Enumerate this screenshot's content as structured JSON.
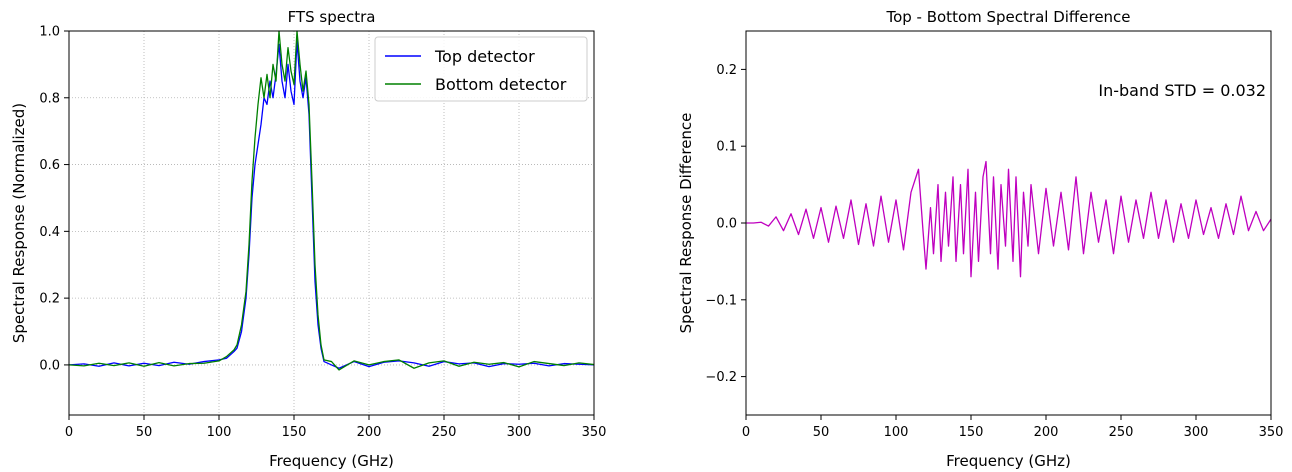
{
  "chart_data": [
    {
      "type": "line",
      "title": "FTS spectra",
      "xlabel": "Frequency (GHz)",
      "ylabel": "Spectral Response (Normalized)",
      "xlim": [
        0,
        350
      ],
      "ylim": [
        -0.15,
        1.0
      ],
      "xticks": [
        0,
        50,
        100,
        150,
        200,
        250,
        300,
        350
      ],
      "xtick_labels": [
        "0",
        "50",
        "100",
        "150",
        "200",
        "250",
        "300",
        "350"
      ],
      "yticks": [
        0.0,
        0.2,
        0.4,
        0.6,
        0.8,
        1.0
      ],
      "ytick_labels": [
        "0.0",
        "0.2",
        "0.4",
        "0.6",
        "0.8",
        "1.0"
      ],
      "grid": true,
      "legend_position": "top-right",
      "series": [
        {
          "name": "Top detector",
          "color": "#0000ff",
          "x": [
            0,
            10,
            20,
            30,
            40,
            50,
            60,
            70,
            80,
            90,
            100,
            105,
            110,
            112,
            115,
            118,
            120,
            122,
            124,
            126,
            128,
            130,
            132,
            134,
            136,
            138,
            140,
            142,
            144,
            146,
            148,
            150,
            152,
            154,
            156,
            158,
            160,
            162,
            164,
            166,
            168,
            170,
            175,
            180,
            190,
            200,
            210,
            220,
            230,
            240,
            250,
            260,
            270,
            280,
            290,
            300,
            310,
            320,
            330,
            340,
            350
          ],
          "values": [
            0.0,
            0.003,
            -0.004,
            0.006,
            -0.003,
            0.005,
            -0.002,
            0.008,
            0.002,
            0.01,
            0.015,
            0.02,
            0.04,
            0.05,
            0.1,
            0.2,
            0.33,
            0.5,
            0.6,
            0.66,
            0.72,
            0.8,
            0.78,
            0.85,
            0.8,
            0.87,
            0.96,
            0.85,
            0.8,
            0.9,
            0.82,
            0.78,
            0.97,
            0.85,
            0.8,
            0.86,
            0.75,
            0.5,
            0.25,
            0.12,
            0.05,
            0.01,
            0.0,
            -0.01,
            0.01,
            -0.005,
            0.008,
            0.012,
            0.006,
            -0.004,
            0.01,
            0.003,
            0.006,
            -0.005,
            0.004,
            0.002,
            0.005,
            -0.003,
            0.004,
            0.002,
            0.0
          ]
        },
        {
          "name": "Bottom detector",
          "color": "#008000",
          "x": [
            0,
            10,
            20,
            30,
            40,
            50,
            60,
            70,
            80,
            90,
            100,
            105,
            110,
            112,
            115,
            118,
            120,
            122,
            124,
            126,
            128,
            130,
            132,
            134,
            136,
            138,
            140,
            142,
            144,
            146,
            148,
            150,
            152,
            154,
            156,
            158,
            160,
            162,
            164,
            166,
            168,
            170,
            175,
            180,
            190,
            200,
            210,
            220,
            230,
            240,
            250,
            260,
            270,
            280,
            290,
            300,
            310,
            320,
            330,
            340,
            350
          ],
          "values": [
            0.0,
            -0.003,
            0.005,
            -0.002,
            0.006,
            -0.004,
            0.007,
            -0.003,
            0.004,
            0.005,
            0.012,
            0.025,
            0.045,
            0.06,
            0.12,
            0.22,
            0.36,
            0.55,
            0.68,
            0.78,
            0.86,
            0.8,
            0.87,
            0.8,
            0.9,
            0.85,
            1.0,
            0.9,
            0.85,
            0.95,
            0.88,
            0.84,
            1.0,
            0.9,
            0.82,
            0.88,
            0.78,
            0.55,
            0.3,
            0.15,
            0.06,
            0.015,
            0.01,
            -0.015,
            0.012,
            0.0,
            0.01,
            0.015,
            -0.01,
            0.006,
            0.012,
            -0.004,
            0.008,
            0.002,
            0.007,
            -0.006,
            0.01,
            0.004,
            -0.002,
            0.006,
            0.001
          ]
        }
      ]
    },
    {
      "type": "line",
      "title": "Top - Bottom Spectral Difference",
      "xlabel": "Frequency (GHz)",
      "ylabel": "Spectral Response Difference",
      "xlim": [
        0,
        350
      ],
      "ylim": [
        -0.25,
        0.25
      ],
      "xticks": [
        0,
        50,
        100,
        150,
        200,
        250,
        300,
        350
      ],
      "xtick_labels": [
        "0",
        "50",
        "100",
        "150",
        "200",
        "250",
        "300",
        "350"
      ],
      "yticks": [
        -0.2,
        -0.1,
        0.0,
        0.1,
        0.2
      ],
      "ytick_labels": [
        "−0.2",
        "−0.1",
        "0.0",
        "0.1",
        "0.2"
      ],
      "grid": false,
      "annotation": "In-band STD = 0.032",
      "series": [
        {
          "color": "#bf00bf",
          "x": [
            0,
            5,
            10,
            15,
            20,
            25,
            30,
            35,
            40,
            45,
            50,
            55,
            60,
            65,
            70,
            75,
            80,
            85,
            90,
            95,
            100,
            105,
            110,
            115,
            118,
            120,
            123,
            125,
            128,
            130,
            133,
            135,
            138,
            140,
            143,
            145,
            148,
            150,
            153,
            155,
            158,
            160,
            163,
            165,
            168,
            170,
            173,
            175,
            178,
            180,
            183,
            185,
            188,
            190,
            195,
            200,
            205,
            210,
            215,
            220,
            225,
            230,
            235,
            240,
            245,
            250,
            255,
            260,
            265,
            270,
            275,
            280,
            285,
            290,
            295,
            300,
            305,
            310,
            315,
            320,
            325,
            330,
            335,
            340,
            345,
            350
          ],
          "values": [
            0.0,
            0.0,
            0.001,
            -0.004,
            0.008,
            -0.01,
            0.012,
            -0.015,
            0.018,
            -0.02,
            0.02,
            -0.025,
            0.022,
            -0.02,
            0.03,
            -0.028,
            0.025,
            -0.03,
            0.035,
            -0.025,
            0.03,
            -0.035,
            0.04,
            0.07,
            -0.01,
            -0.06,
            0.02,
            -0.04,
            0.05,
            -0.05,
            0.04,
            -0.03,
            0.06,
            -0.05,
            0.05,
            -0.04,
            0.07,
            -0.07,
            0.04,
            -0.05,
            0.06,
            0.08,
            -0.04,
            0.06,
            -0.06,
            0.05,
            -0.03,
            0.07,
            -0.05,
            0.06,
            -0.07,
            0.04,
            -0.03,
            0.05,
            -0.04,
            0.045,
            -0.03,
            0.04,
            -0.035,
            0.06,
            -0.04,
            0.04,
            -0.025,
            0.03,
            -0.04,
            0.035,
            -0.025,
            0.03,
            -0.02,
            0.04,
            -0.02,
            0.03,
            -0.025,
            0.025,
            -0.02,
            0.03,
            -0.015,
            0.02,
            -0.02,
            0.025,
            -0.015,
            0.035,
            -0.01,
            0.015,
            -0.01,
            0.005
          ]
        }
      ]
    }
  ]
}
